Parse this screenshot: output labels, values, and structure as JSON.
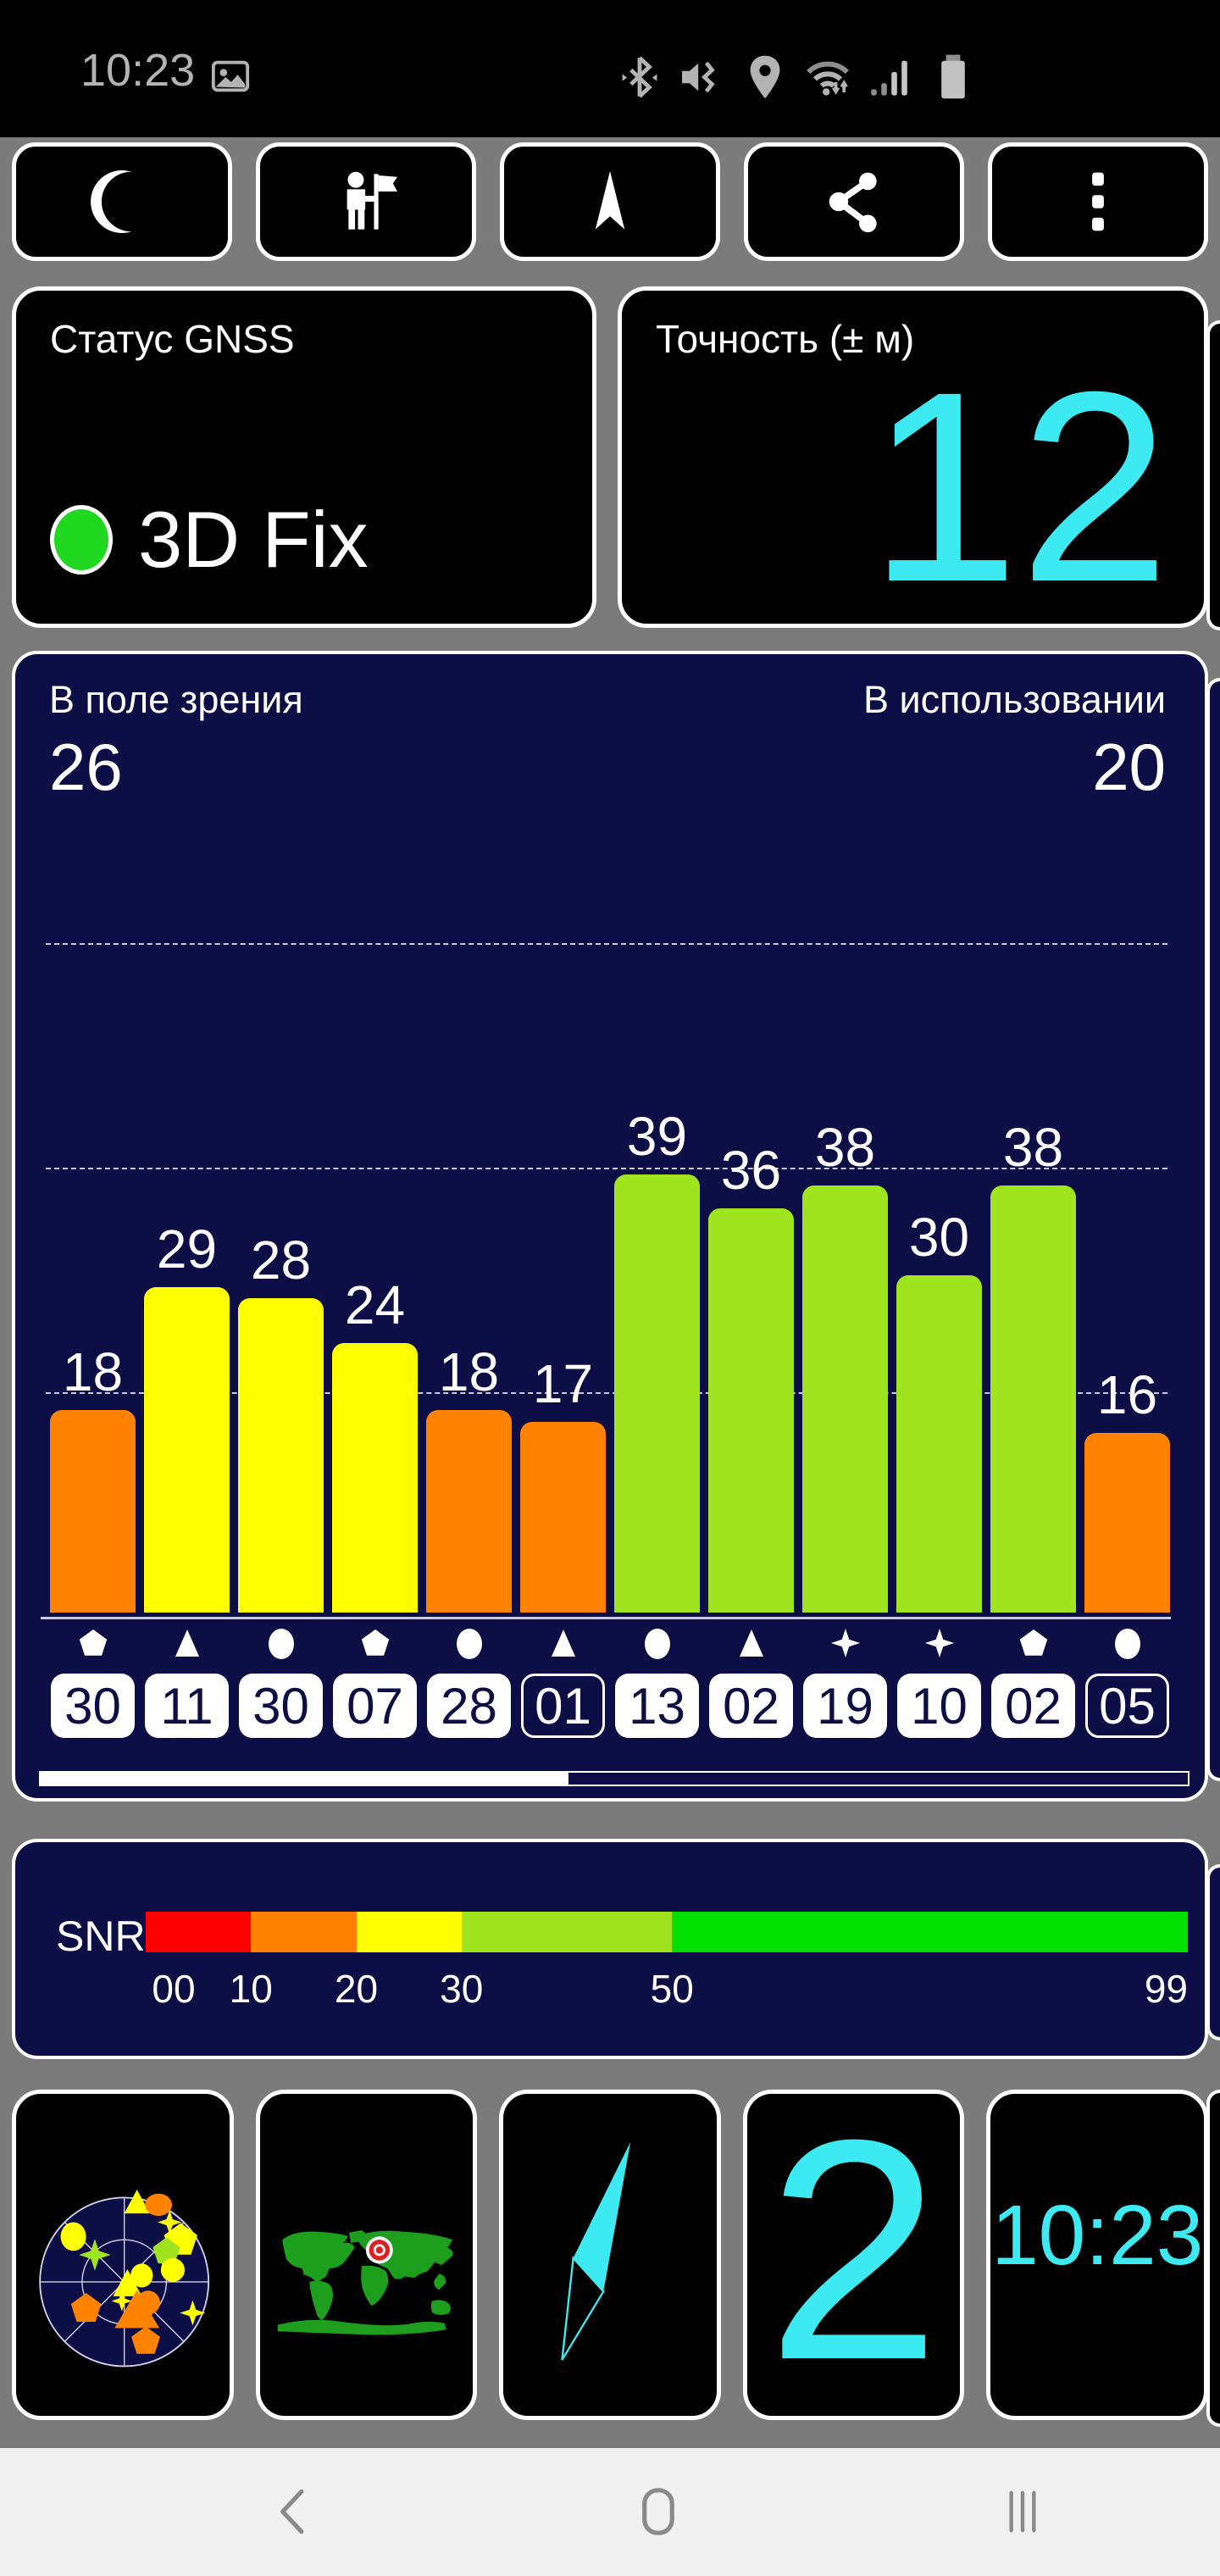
{
  "status_bar": {
    "time": "10:23",
    "icons": [
      "image-icon",
      "bluetooth-icon",
      "mute-vibrate-icon",
      "location-icon",
      "wifi-icon",
      "signal-icon",
      "battery-icon"
    ]
  },
  "toolbar": {
    "buttons": [
      "night-mode",
      "waypoints",
      "navigation",
      "share",
      "menu"
    ]
  },
  "cards": {
    "gnss_status": {
      "title": "Статус GNSS",
      "value": "3D Fix",
      "dot_color": "#1FD81F"
    },
    "accuracy": {
      "title": "Точность (± м)",
      "value": "12",
      "accent": "#3DEAF2"
    }
  },
  "chart_data": {
    "type": "bar",
    "title_left": "В поле зрения",
    "in_view": "26",
    "title_right": "В использовании",
    "in_use": "20",
    "ylabel": "SNR",
    "ylim": [
      0,
      65
    ],
    "gridlines": [
      20,
      40,
      60
    ],
    "legend_position": "none",
    "satellites": [
      {
        "prn": "30",
        "snr": 18,
        "shape": "pentagon",
        "color": "#FF8300",
        "badge": "filled"
      },
      {
        "prn": "11",
        "snr": 29,
        "shape": "triangle",
        "color": "#FFFF00",
        "badge": "filled"
      },
      {
        "prn": "30",
        "snr": 28,
        "shape": "circle",
        "color": "#FFFF00",
        "badge": "filled"
      },
      {
        "prn": "07",
        "snr": 24,
        "shape": "pentagon",
        "color": "#FFFF00",
        "badge": "filled"
      },
      {
        "prn": "28",
        "snr": 18,
        "shape": "circle",
        "color": "#FF8300",
        "badge": "filled"
      },
      {
        "prn": "01",
        "snr": 17,
        "shape": "triangle",
        "color": "#FF8300",
        "badge": "outlined"
      },
      {
        "prn": "13",
        "snr": 39,
        "shape": "circle",
        "color": "#9FE41F",
        "badge": "filled"
      },
      {
        "prn": "02",
        "snr": 36,
        "shape": "triangle",
        "color": "#9FE41F",
        "badge": "filled"
      },
      {
        "prn": "19",
        "snr": 38,
        "shape": "star",
        "color": "#9FE41F",
        "badge": "filled"
      },
      {
        "prn": "10",
        "snr": 30,
        "shape": "star",
        "color": "#9FE41F",
        "badge": "filled"
      },
      {
        "prn": "02",
        "snr": 38,
        "shape": "pentagon",
        "color": "#9FE41F",
        "badge": "filled"
      },
      {
        "prn": "05",
        "snr": 16,
        "shape": "circle",
        "color": "#FF8300",
        "badge": "outlined"
      }
    ],
    "progress_percent": 46
  },
  "snr_legend": {
    "label": "SNR",
    "segments": [
      {
        "from": 0,
        "to": 10,
        "color": "#FF0000"
      },
      {
        "from": 10,
        "to": 20,
        "color": "#FF8300"
      },
      {
        "from": 20,
        "to": 30,
        "color": "#FFFF00"
      },
      {
        "from": 30,
        "to": 50,
        "color": "#9FE41F"
      },
      {
        "from": 50,
        "to": 99,
        "color": "#00DF00"
      }
    ],
    "ticks": [
      "00",
      "10",
      "20",
      "30",
      "50",
      "99"
    ]
  },
  "bottom_cards": {
    "sky_plot": "satellite sky view",
    "world_map": "world map with position marker",
    "compass": "compass needle",
    "speed": "2",
    "clock": "10:23"
  },
  "nav_bar": {
    "icons": [
      "back-icon",
      "home-icon",
      "recents-icon"
    ]
  }
}
